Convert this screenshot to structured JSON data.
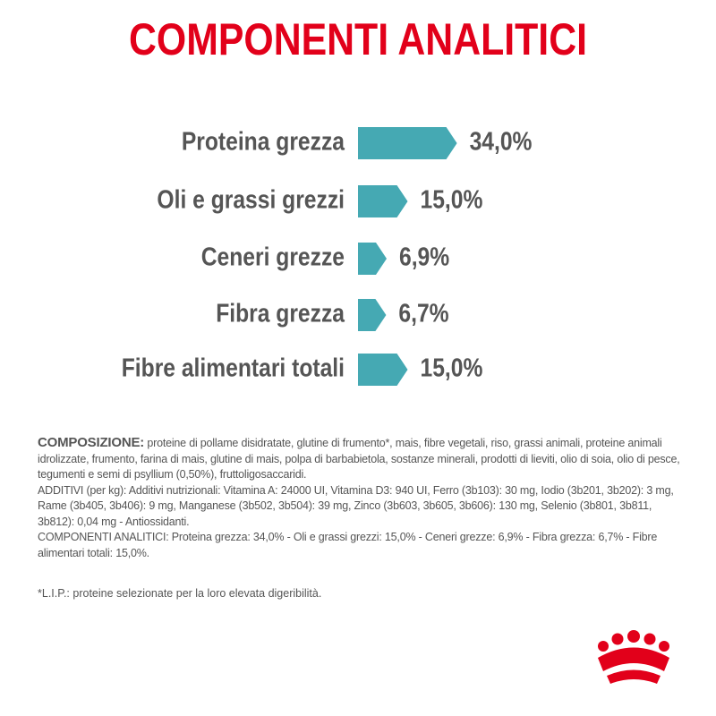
{
  "chart_data": {
    "type": "bar",
    "title": "COMPONENTI ANALITICI",
    "categories": [
      "Proteina grezza",
      "Oli e grassi grezzi",
      "Ceneri grezze",
      "Fibra grezza",
      "Fibre alimentari totali"
    ],
    "values": [
      34.0,
      15.0,
      6.9,
      6.7,
      15.0
    ],
    "value_labels": [
      "34,0%",
      "15,0%",
      "6,9%",
      "6,7%",
      "15,0%"
    ],
    "color": "#45a9b3"
  },
  "composition": {
    "label": "COMPOSIZIONE:",
    "text": "proteine di pollame disidratate, glutine di frumento*, mais, fibre vegetali, riso, grassi animali, proteine animali idrolizzate, frumento, farina di mais, glutine di mais, polpa di barbabietola, sostanze minerali, prodotti di lieviti, olio di soia, olio di pesce, tegumenti e semi di psyllium (0,50%), fruttoligosaccaridi.",
    "additives": "ADDITIVI (per kg): Additivi nutrizionali: Vitamina A: 24000 UI, Vitamina D3: 940 UI, Ferro (3b103): 30 mg, Iodio (3b201, 3b202): 3 mg, Rame (3b405, 3b406): 9 mg, Manganese (3b502, 3b504): 39 mg, Zinco (3b603, 3b605, 3b606): 130 mg, Selenio (3b801, 3b811, 3b812): 0,04 mg - Antiossidanti.",
    "analytic": "COMPONENTI ANALITICI: Proteina grezza: 34,0% - Oli e grassi grezzi: 15,0% - Ceneri grezze: 6,9% - Fibra grezza: 6,7% - Fibre alimentari totali: 15,0%.",
    "footnote": "*L.I.P.: proteine selezionate per la loro elevata digeribilità."
  }
}
